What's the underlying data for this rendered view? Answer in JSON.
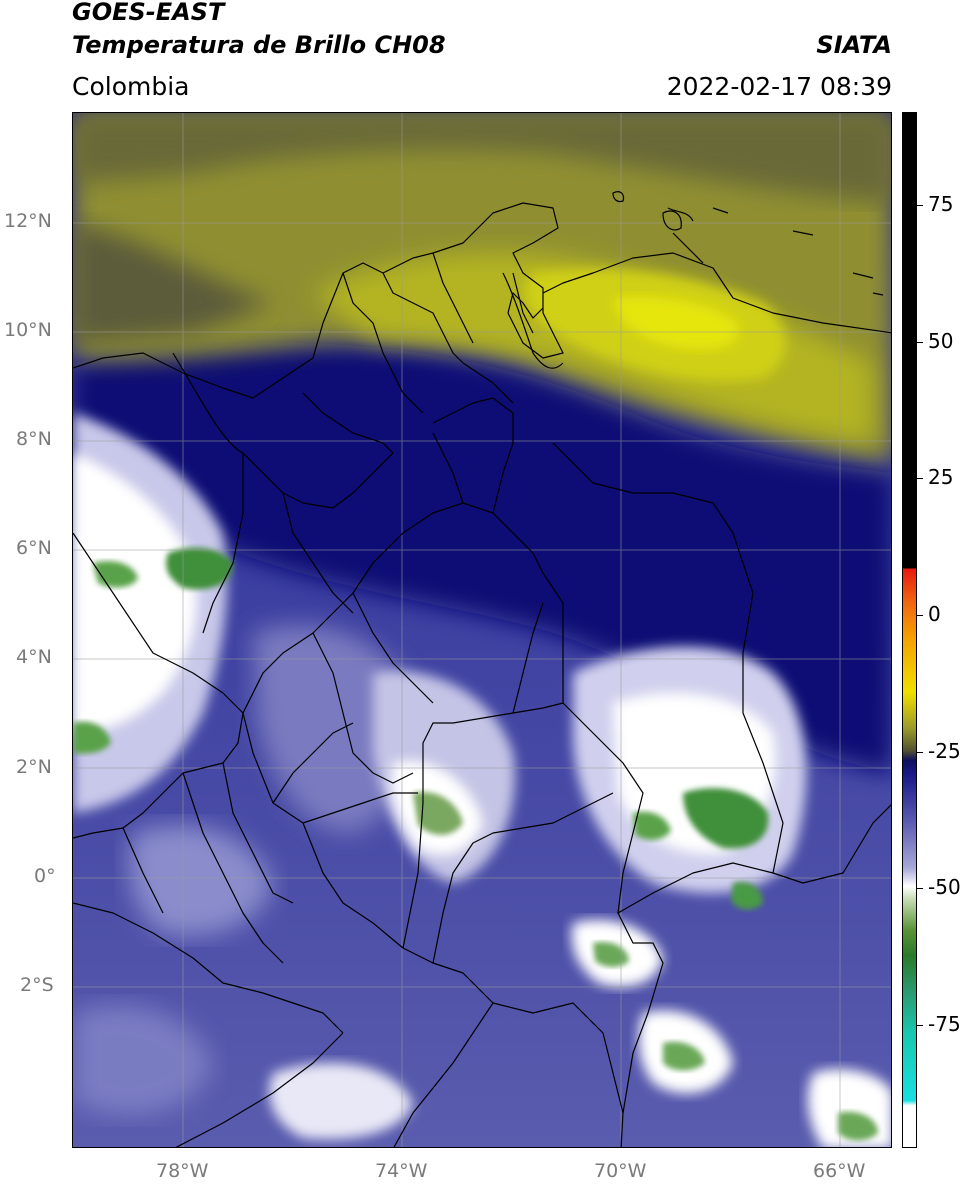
{
  "header": {
    "satellite": "GOES-EAST",
    "product": "Temperatura de Brillo CH08",
    "region": "Colombia",
    "agency": "SIATA",
    "datetime": "2022-02-17 08:39"
  },
  "axes": {
    "lat_ticks": [
      "12°N",
      "10°N",
      "8°N",
      "6°N",
      "4°N",
      "2°N",
      "0°",
      "2°S"
    ],
    "lon_ticks": [
      "78°W",
      "74°W",
      "70°W",
      "66°W"
    ]
  },
  "colorbar": {
    "ticks": [
      "75",
      "50",
      "25",
      "0",
      "-25",
      "-50",
      "-75"
    ],
    "colors": {
      "black": "#000000",
      "red": "#e81a10",
      "orange": "#f4a400",
      "yellow": "#f0e000",
      "olive": "#9b9b2a",
      "navy": "#101060",
      "lavender": "#a8a8d8",
      "white": "#ffffff",
      "green": "#2a7a2a",
      "teal": "#2a9a70",
      "cyan": "#18e0e0"
    }
  }
}
